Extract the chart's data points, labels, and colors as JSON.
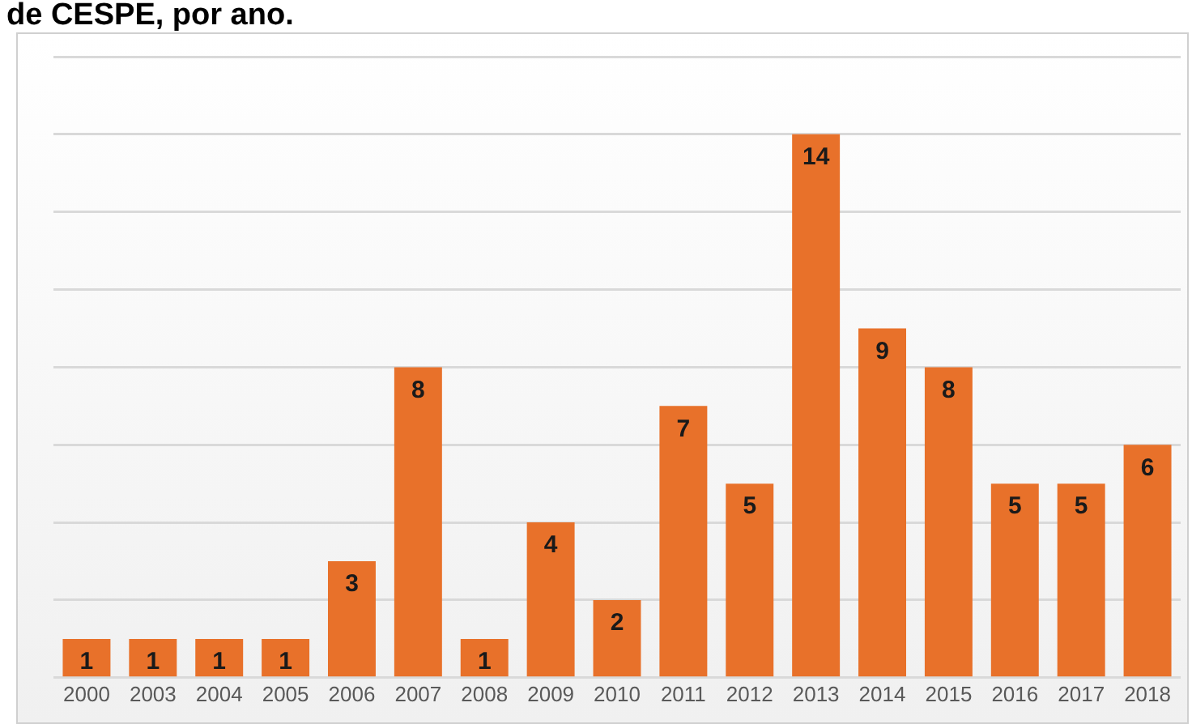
{
  "chart_data": {
    "type": "bar",
    "title": "de CESPE, por ano.",
    "categories": [
      "2000",
      "2003",
      "2004",
      "2005",
      "2006",
      "2007",
      "2008",
      "2009",
      "2010",
      "2011",
      "2012",
      "2013",
      "2014",
      "2015",
      "2016",
      "2017",
      "2018"
    ],
    "values": [
      1,
      1,
      1,
      1,
      3,
      8,
      1,
      4,
      2,
      7,
      5,
      14,
      9,
      8,
      5,
      5,
      6
    ],
    "color": "#e8712a",
    "ylim": [
      0,
      16
    ],
    "yticks": [
      {
        "value": 0,
        "label": null
      },
      {
        "value": 2,
        "label": null
      },
      {
        "value": 4,
        "label": null
      },
      {
        "value": 6,
        "label": null
      },
      {
        "value": 8,
        "label": null
      },
      {
        "value": 10,
        "label": null
      },
      {
        "value": 12,
        "label": null
      },
      {
        "value": 14,
        "label": null
      },
      {
        "value": 16,
        "label": null
      }
    ],
    "tick_labels": "x",
    "grid": "y",
    "data_labels": true
  }
}
